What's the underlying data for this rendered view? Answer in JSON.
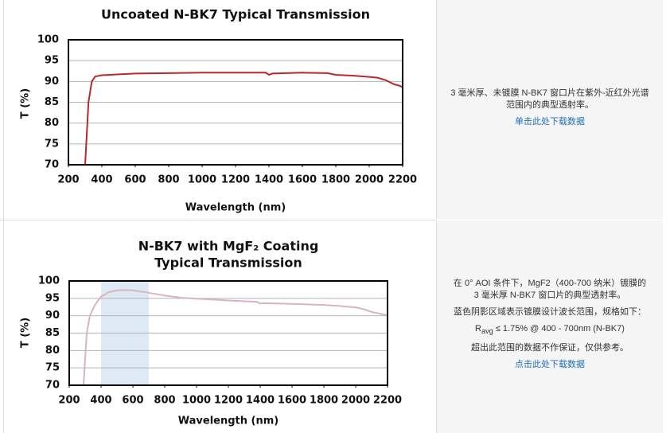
{
  "chart_data": [
    {
      "type": "line",
      "title": [
        "Uncoated N-BK7 Typical Transmission"
      ],
      "xlabel": "Wavelength (nm)",
      "ylabel": "T (%)",
      "x": [
        300,
        320,
        340,
        360,
        400,
        500,
        600,
        800,
        1000,
        1200,
        1380,
        1400,
        1420,
        1600,
        1750,
        1800,
        1900,
        2000,
        2050,
        2100,
        2150,
        2180,
        2200
      ],
      "values": [
        70,
        85,
        90,
        91.2,
        91.5,
        91.7,
        91.9,
        92,
        92.1,
        92.1,
        92.1,
        91.6,
        91.9,
        92.1,
        92,
        91.6,
        91.4,
        91.1,
        90.9,
        90.3,
        89.3,
        89,
        88.6
      ],
      "color": "#b8292d",
      "xlim": [
        200,
        2200
      ],
      "ylim": [
        70,
        100
      ],
      "xticks": [
        200,
        400,
        600,
        800,
        1000,
        1200,
        1400,
        1600,
        1800,
        2000,
        2200
      ],
      "yticks": [
        70,
        75,
        80,
        85,
        90,
        95,
        100
      ],
      "grid": true
    },
    {
      "type": "line",
      "title": [
        "N-BK7 with MgF₂ Coating",
        "Typical Transmission"
      ],
      "xlabel": "Wavelength (nm)",
      "ylabel": "T (%)",
      "x": [
        290,
        310,
        330,
        360,
        400,
        450,
        500,
        550,
        600,
        700,
        800,
        900,
        1000,
        1200,
        1380,
        1400,
        1420,
        1600,
        1800,
        1900,
        2000,
        2050,
        2100,
        2150,
        2200
      ],
      "values": [
        70,
        85,
        90,
        93,
        95.5,
        96.8,
        97.3,
        97.4,
        97.3,
        96.6,
        95.8,
        95.2,
        94.9,
        94.4,
        94,
        93.5,
        93.6,
        93.4,
        93.1,
        92.8,
        92.4,
        91.9,
        91.1,
        90.6,
        90.1
      ],
      "color": "#d9b5ba",
      "band": [
        400,
        700
      ],
      "band_color": "#dde9f5",
      "xlim": [
        200,
        2200
      ],
      "ylim": [
        70,
        100
      ],
      "xticks": [
        200,
        400,
        600,
        800,
        1000,
        1200,
        1400,
        1600,
        1800,
        2000,
        2200
      ],
      "yticks": [
        70,
        75,
        80,
        85,
        90,
        95,
        100
      ],
      "grid": true
    }
  ],
  "descriptions": [
    {
      "lines": [
        "3 毫米厚、未镀膜 N-BK7 窗口片在紫外-近红外光谱",
        "范围内的典型透射率。"
      ],
      "link": "单击此处下载数据"
    },
    {
      "lines": [
        "在 0° AOI 条件下，MgF2（400-700 纳米）镀膜的",
        "3 毫米厚 N-BK7 窗口片的典型透射率。",
        "蓝色阴影区域表示镀膜设计波长范围，规格如下："
      ],
      "spec": [
        "R",
        "avg",
        " ≤ 1.75% @ 400 - 700nm (N-BK7)"
      ],
      "note": "超出此范围的数据不作保证，仅供参考。",
      "link": "点击此处下载数据"
    }
  ]
}
